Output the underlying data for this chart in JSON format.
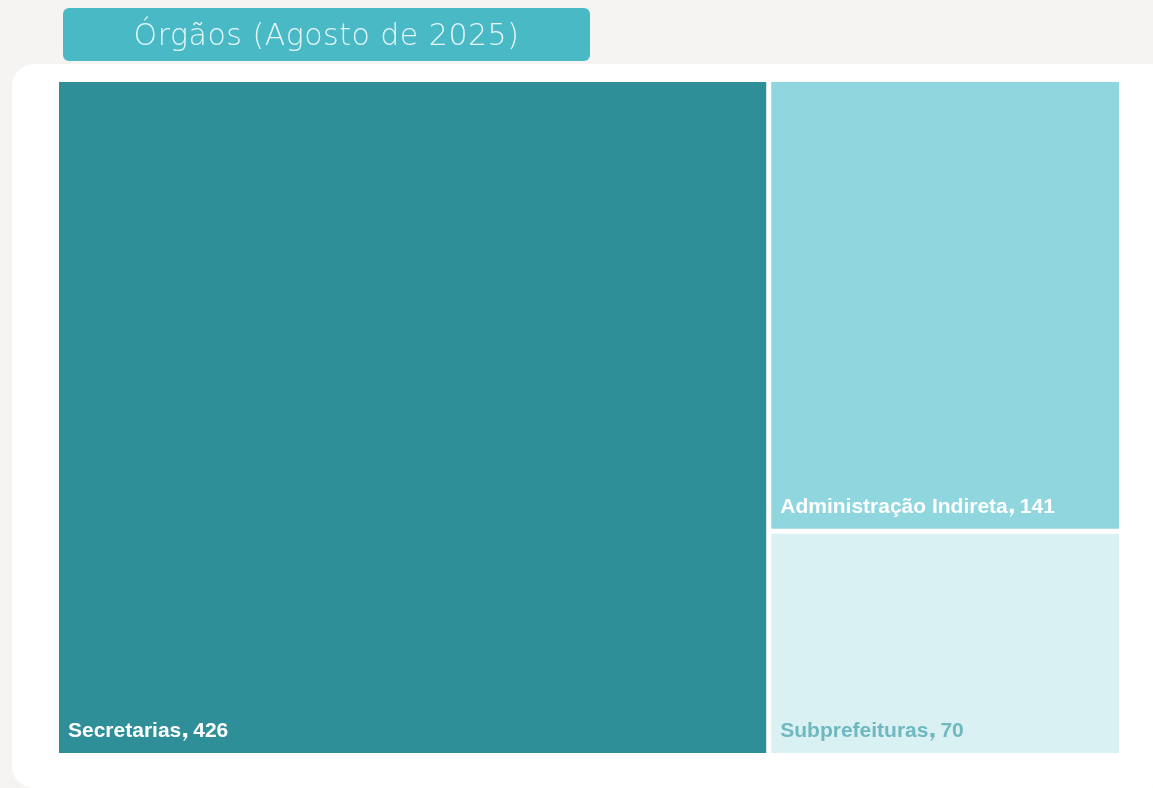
{
  "chart_data": {
    "type": "other",
    "title": "Órgãos (Agosto de 2025)",
    "categories": [
      "Secretarias",
      "Administração Indireta",
      "Subprefeituras"
    ],
    "values": [
      426,
      141,
      70
    ],
    "colors": [
      "#2f8f98",
      "#8fd6de",
      "#d9f1f3"
    ],
    "data_labels": true
  }
}
